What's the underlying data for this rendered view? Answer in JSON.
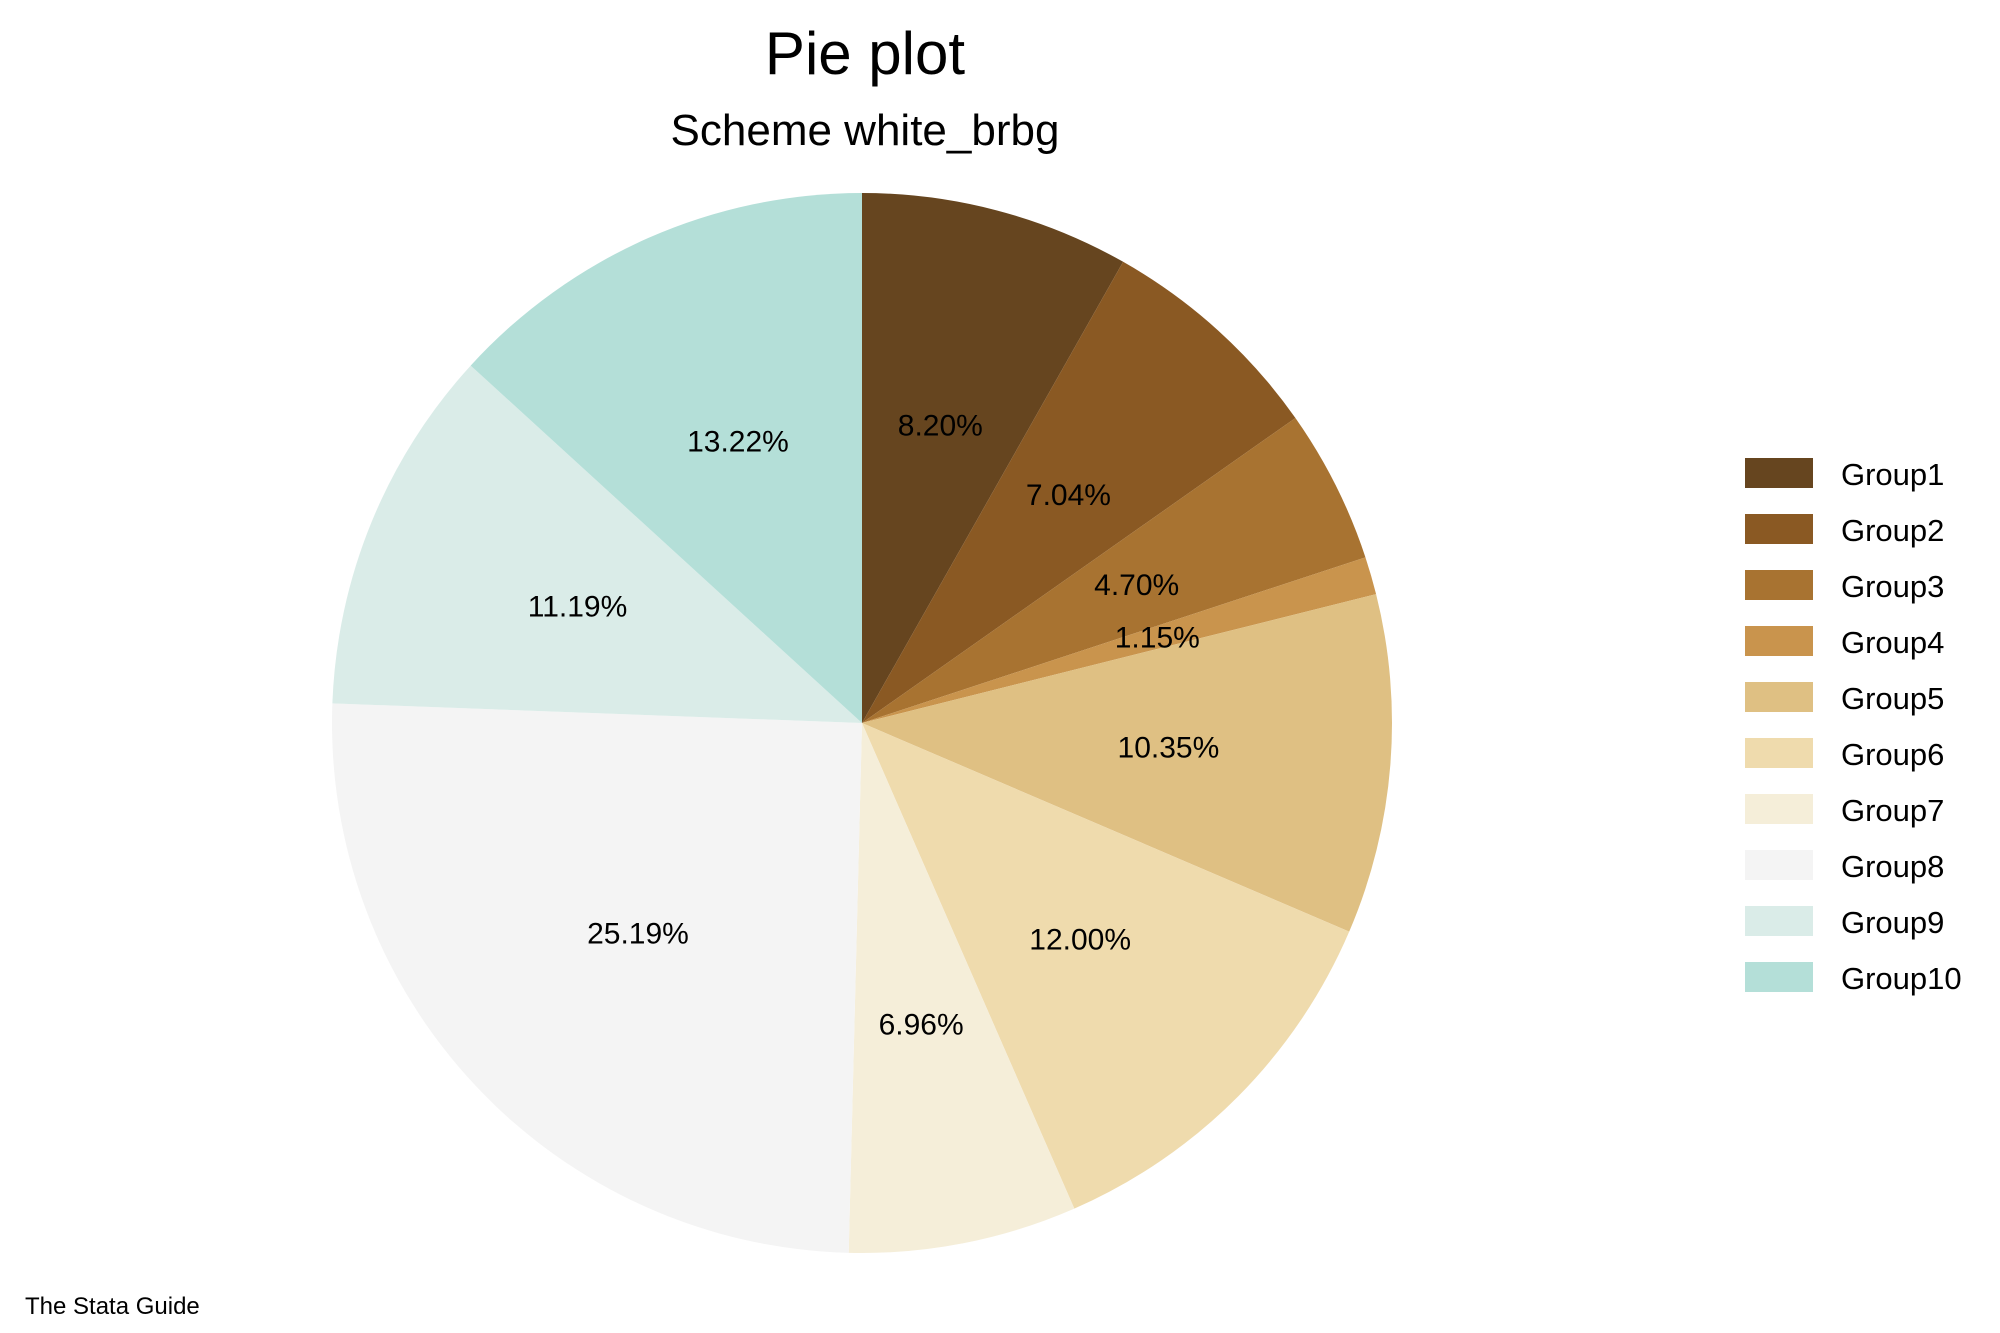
{
  "chart_data": {
    "type": "pie",
    "title": "Pie plot",
    "subtitle": "Scheme white_brbg",
    "note": "The Stata Guide",
    "legend_position": "right",
    "slices": [
      {
        "name": "Group1",
        "value": 8.2,
        "label": "8.20%",
        "color": "#66451f"
      },
      {
        "name": "Group2",
        "value": 7.04,
        "label": "7.04%",
        "color": "#8a5923"
      },
      {
        "name": "Group3",
        "value": 4.7,
        "label": "4.70%",
        "color": "#a87331"
      },
      {
        "name": "Group4",
        "value": 1.15,
        "label": "1.15%",
        "color": "#c9944d"
      },
      {
        "name": "Group5",
        "value": 10.35,
        "label": "10.35%",
        "color": "#dfc083"
      },
      {
        "name": "Group6",
        "value": 12.0,
        "label": "12.00%",
        "color": "#efdbad"
      },
      {
        "name": "Group7",
        "value": 6.96,
        "label": "6.96%",
        "color": "#f5eed9"
      },
      {
        "name": "Group8",
        "value": 25.19,
        "label": "25.19%",
        "color": "#f4f4f4"
      },
      {
        "name": "Group9",
        "value": 11.19,
        "label": "11.19%",
        "color": "#daece8"
      },
      {
        "name": "Group10",
        "value": 13.22,
        "label": "13.22%",
        "color": "#b4dfd8"
      }
    ]
  }
}
